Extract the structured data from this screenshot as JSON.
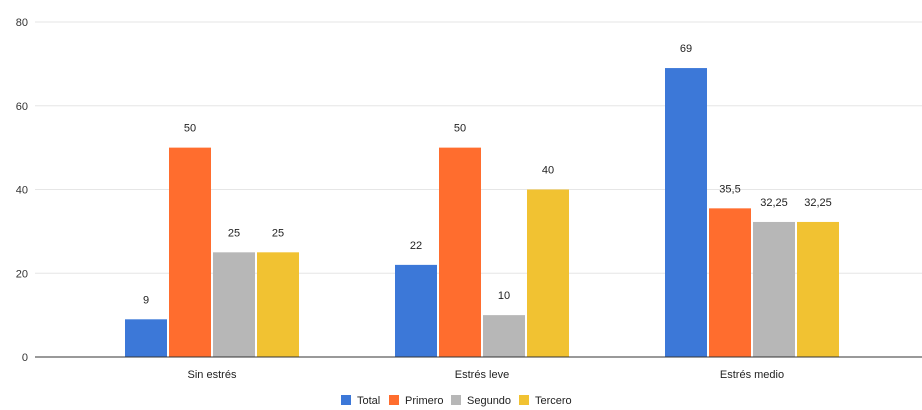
{
  "chart_data": {
    "type": "bar",
    "title": "",
    "xlabel": "",
    "ylabel": "",
    "categories": [
      "Sin estrés",
      "Estrés leve",
      "Estrés medio"
    ],
    "series": [
      {
        "name": "Total",
        "color": "#3c78d8",
        "values": [
          9,
          22,
          69
        ],
        "labels": [
          "9",
          "22",
          "69"
        ]
      },
      {
        "name": "Primero",
        "color": "#ff6d2e",
        "values": [
          50,
          50,
          35.5
        ],
        "labels": [
          "50",
          "50",
          "35,5"
        ]
      },
      {
        "name": "Segundo",
        "color": "#b7b7b7",
        "values": [
          25,
          10,
          32.25
        ],
        "labels": [
          "25",
          "10",
          "32,25"
        ]
      },
      {
        "name": "Tercero",
        "color": "#f1c232",
        "values": [
          25,
          40,
          32.25
        ],
        "labels": [
          "25",
          "40",
          "32,25"
        ]
      }
    ],
    "ylim": [
      0,
      80
    ],
    "yticks": [
      "0",
      "20",
      "40",
      "60",
      "80"
    ],
    "grid": true,
    "legend_position": "bottom"
  }
}
